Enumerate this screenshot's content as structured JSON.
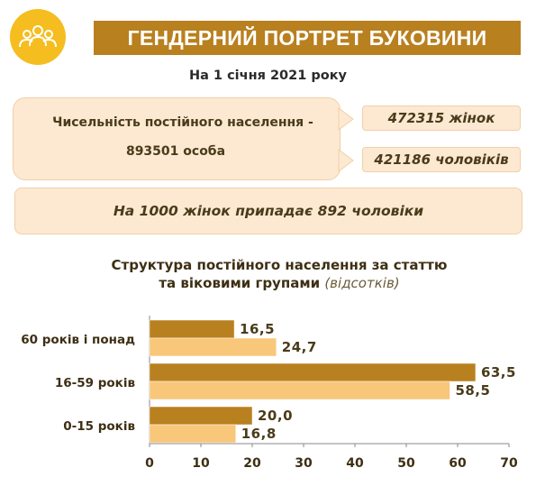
{
  "header": {
    "title": "ГЕНДЕРНИЙ ПОРТРЕТ БУКОВИНИ",
    "date": "На 1 січня 2021 року",
    "logo_icon": "people-group-icon"
  },
  "population": {
    "label": "Чисельність постійного населення  -",
    "total": "893501 особа",
    "women": "472315 жінок",
    "men": "421186 чоловіків"
  },
  "ratio_text": "На 1000 жінок припадає 892 чоловіки",
  "chart_title": {
    "line1": "Структура постійного населення за статтю",
    "line2": "та віковими групами",
    "unit": "(відсотків)"
  },
  "colors": {
    "accent": "#b9801f",
    "light": "#f8c77a",
    "panel": "#fde9d2",
    "logo": "#f5bd1f"
  },
  "chart_data": {
    "type": "bar",
    "orientation": "horizontal",
    "categories": [
      "60 років і понад",
      "16-59 років",
      "0-15 років"
    ],
    "series": [
      {
        "values": [
          16.5,
          63.5,
          20.0
        ],
        "labels": [
          "16,5",
          "63,5",
          "20,0"
        ],
        "color": "#b9801f"
      },
      {
        "values": [
          24.7,
          58.5,
          16.8
        ],
        "labels": [
          "24,7",
          "58,5",
          "16,8"
        ],
        "color": "#f8c77a"
      }
    ],
    "xlim": [
      0,
      70
    ],
    "xticks": [
      0,
      10,
      20,
      30,
      40,
      50,
      60,
      70
    ],
    "grid": false
  }
}
